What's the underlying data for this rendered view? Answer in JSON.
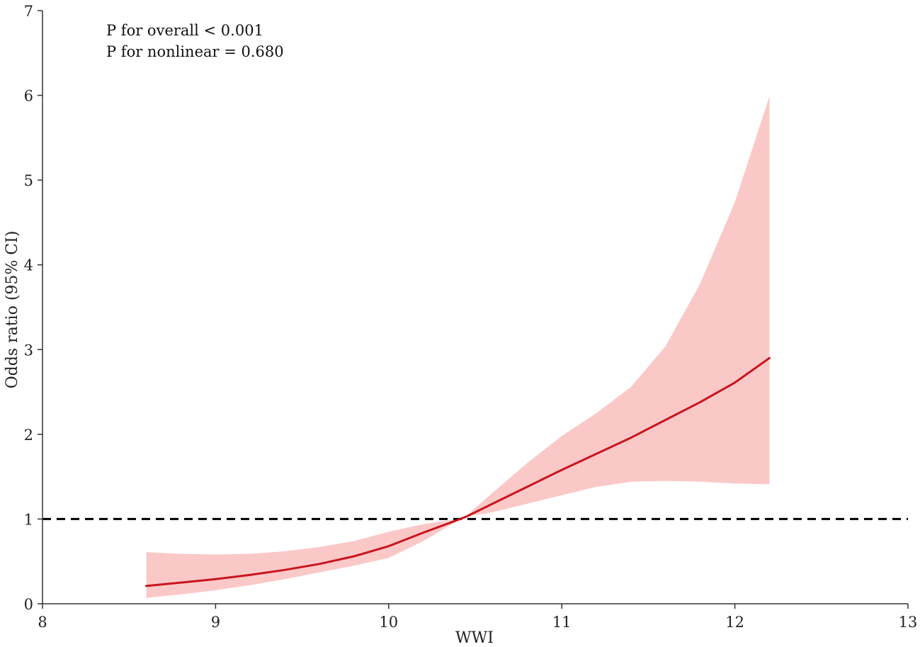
{
  "chart_data": {
    "type": "line",
    "title": "",
    "xlabel": "WWI",
    "ylabel": "Odds ratio (95% CI)",
    "xlim": [
      8,
      13
    ],
    "ylim": [
      0,
      7
    ],
    "x_ticks": [
      8,
      9,
      10,
      11,
      12,
      13
    ],
    "y_ticks": [
      0,
      1,
      2,
      3,
      4,
      5,
      6,
      7
    ],
    "x_tick_labels": [
      "8",
      "9",
      "10",
      "11",
      "12",
      "13"
    ],
    "y_tick_labels": [
      "0",
      "1",
      "2",
      "3",
      "4",
      "5",
      "6",
      "7"
    ],
    "annotations": [
      "P for overall < 0.001",
      "P for nonlinear = 0.680"
    ],
    "reference_line": {
      "y": 1,
      "style": "dashed",
      "color": "#000000"
    },
    "grid": false,
    "series": [
      {
        "x": [
          8.6,
          8.8,
          9.0,
          9.2,
          9.4,
          9.6,
          9.8,
          10.0,
          10.2,
          10.4,
          10.45,
          10.6,
          10.8,
          11.0,
          11.2,
          11.4,
          11.6,
          11.8,
          12.0,
          12.2
        ],
        "y": [
          0.21,
          0.25,
          0.29,
          0.34,
          0.4,
          0.47,
          0.56,
          0.68,
          0.84,
          0.99,
          1.03,
          1.18,
          1.38,
          1.58,
          1.77,
          1.96,
          2.17,
          2.38,
          2.61,
          2.9
        ],
        "lower": [
          0.07,
          0.11,
          0.16,
          0.22,
          0.29,
          0.37,
          0.45,
          0.54,
          0.74,
          0.98,
          1.03,
          1.08,
          1.18,
          1.28,
          1.38,
          1.44,
          1.45,
          1.44,
          1.42,
          1.41
        ],
        "upper": [
          0.61,
          0.59,
          0.58,
          0.59,
          0.62,
          0.67,
          0.74,
          0.85,
          0.94,
          1.0,
          1.04,
          1.31,
          1.66,
          1.98,
          2.25,
          2.56,
          3.04,
          3.78,
          4.74,
          5.99
        ],
        "line_color": "#c9151d",
        "band_color": "#fbc8c8"
      }
    ]
  }
}
